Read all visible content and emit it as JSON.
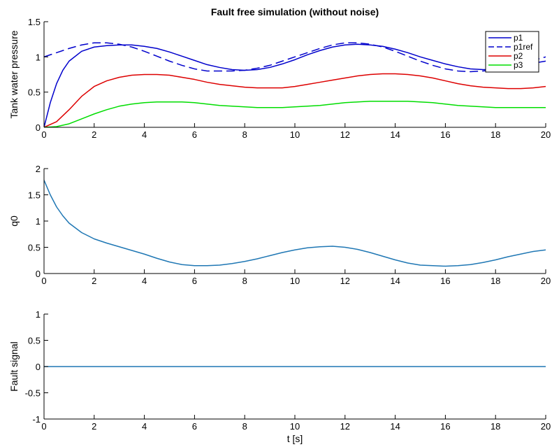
{
  "chart_data": [
    {
      "type": "line",
      "title": "Fault free simulation (without noise)",
      "xlabel": "",
      "ylabel": "Tank water pressure",
      "xlim": [
        0,
        20
      ],
      "ylim": [
        0,
        1.5
      ],
      "xticks": [
        "0",
        "2",
        "4",
        "6",
        "8",
        "10",
        "12",
        "14",
        "16",
        "18",
        "20"
      ],
      "yticks": [
        "0",
        "0.5",
        "1",
        "1.5"
      ],
      "legend_position": "top-right",
      "series": [
        {
          "name": "p1",
          "color": "#0000cc",
          "dash": false,
          "x": [
            0,
            0.25,
            0.5,
            0.75,
            1,
            1.5,
            2,
            2.5,
            3,
            3.5,
            4,
            4.5,
            5,
            5.5,
            6,
            6.5,
            7,
            7.5,
            8,
            8.5,
            9,
            9.5,
            10,
            10.5,
            11,
            11.5,
            12,
            12.5,
            13,
            13.5,
            14,
            14.5,
            15,
            15.5,
            16,
            16.5,
            17,
            17.5,
            18,
            18.5,
            19,
            19.5,
            20
          ],
          "values": [
            0,
            0.35,
            0.62,
            0.81,
            0.94,
            1.08,
            1.14,
            1.16,
            1.17,
            1.17,
            1.15,
            1.12,
            1.07,
            1.01,
            0.95,
            0.89,
            0.85,
            0.82,
            0.81,
            0.82,
            0.85,
            0.9,
            0.96,
            1.03,
            1.09,
            1.14,
            1.17,
            1.18,
            1.17,
            1.15,
            1.11,
            1.06,
            1.0,
            0.95,
            0.9,
            0.86,
            0.83,
            0.82,
            0.82,
            0.84,
            0.87,
            0.91,
            0.94
          ]
        },
        {
          "name": "p1ref",
          "color": "#0000cc",
          "dash": true,
          "x": [
            0,
            0.5,
            1,
            1.5,
            2,
            2.5,
            3,
            3.5,
            4,
            4.5,
            5,
            5.5,
            6,
            6.5,
            7,
            7.5,
            8,
            8.5,
            9,
            9.5,
            10,
            10.5,
            11,
            11.5,
            12,
            12.5,
            13,
            13.5,
            14,
            14.5,
            15,
            15.5,
            16,
            16.5,
            17,
            17.5,
            18,
            18.5,
            19,
            19.5,
            20
          ],
          "values": [
            1.0,
            1.06,
            1.12,
            1.17,
            1.2,
            1.2,
            1.18,
            1.14,
            1.08,
            1.01,
            0.94,
            0.88,
            0.83,
            0.8,
            0.8,
            0.8,
            0.81,
            0.84,
            0.88,
            0.94,
            1.0,
            1.06,
            1.12,
            1.17,
            1.2,
            1.2,
            1.18,
            1.14,
            1.08,
            1.01,
            0.94,
            0.88,
            0.83,
            0.8,
            0.79,
            0.8,
            0.82,
            0.86,
            0.9,
            0.95,
            1.0
          ]
        },
        {
          "name": "p2",
          "color": "#dd0000",
          "dash": false,
          "x": [
            0,
            0.5,
            1,
            1.5,
            2,
            2.5,
            3,
            3.5,
            4,
            4.5,
            5,
            5.5,
            6,
            6.5,
            7,
            7.5,
            8,
            8.5,
            9,
            9.5,
            10,
            10.5,
            11,
            11.5,
            12,
            12.5,
            13,
            13.5,
            14,
            14.5,
            15,
            15.5,
            16,
            16.5,
            17,
            17.5,
            18,
            18.5,
            19,
            19.5,
            20
          ],
          "values": [
            0,
            0.08,
            0.25,
            0.44,
            0.58,
            0.66,
            0.71,
            0.74,
            0.75,
            0.75,
            0.74,
            0.71,
            0.68,
            0.64,
            0.61,
            0.59,
            0.57,
            0.56,
            0.56,
            0.56,
            0.58,
            0.61,
            0.64,
            0.67,
            0.7,
            0.73,
            0.75,
            0.76,
            0.76,
            0.75,
            0.73,
            0.7,
            0.66,
            0.62,
            0.59,
            0.57,
            0.56,
            0.55,
            0.55,
            0.56,
            0.58
          ]
        },
        {
          "name": "p3",
          "color": "#00dd00",
          "dash": false,
          "x": [
            0,
            0.5,
            1,
            1.5,
            2,
            2.5,
            3,
            3.5,
            4,
            4.5,
            5,
            5.5,
            6,
            6.5,
            7,
            7.5,
            8,
            8.5,
            9,
            9.5,
            10,
            10.5,
            11,
            11.5,
            12,
            12.5,
            13,
            13.5,
            14,
            14.5,
            15,
            15.5,
            16,
            16.5,
            17,
            17.5,
            18,
            18.5,
            19,
            19.5,
            20
          ],
          "values": [
            0,
            0.01,
            0.05,
            0.12,
            0.19,
            0.25,
            0.3,
            0.33,
            0.35,
            0.36,
            0.36,
            0.36,
            0.35,
            0.33,
            0.31,
            0.3,
            0.29,
            0.28,
            0.28,
            0.28,
            0.29,
            0.3,
            0.31,
            0.33,
            0.35,
            0.36,
            0.37,
            0.37,
            0.37,
            0.37,
            0.36,
            0.35,
            0.33,
            0.31,
            0.3,
            0.29,
            0.28,
            0.28,
            0.28,
            0.28,
            0.28
          ]
        }
      ]
    },
    {
      "type": "line",
      "title": "",
      "xlabel": "",
      "ylabel": "q0",
      "xlim": [
        0,
        20
      ],
      "ylim": [
        0,
        2
      ],
      "xticks": [
        "0",
        "2",
        "4",
        "6",
        "8",
        "10",
        "12",
        "14",
        "16",
        "18",
        "20"
      ],
      "yticks": [
        "0",
        "0.5",
        "1",
        "1.5",
        "2"
      ],
      "series": [
        {
          "color": "#1f77b4",
          "dash": false,
          "x": [
            0,
            0.25,
            0.5,
            0.75,
            1,
            1.5,
            2,
            2.5,
            3,
            3.5,
            4,
            4.5,
            5,
            5.5,
            6,
            6.5,
            7,
            7.5,
            8,
            8.5,
            9,
            9.5,
            10,
            10.5,
            11,
            11.5,
            12,
            12.5,
            13,
            13.5,
            14,
            14.5,
            15,
            15.5,
            16,
            16.5,
            17,
            17.5,
            18,
            18.5,
            19,
            19.5,
            20
          ],
          "values": [
            1.78,
            1.5,
            1.27,
            1.1,
            0.96,
            0.78,
            0.66,
            0.58,
            0.51,
            0.44,
            0.37,
            0.29,
            0.22,
            0.17,
            0.15,
            0.15,
            0.16,
            0.19,
            0.23,
            0.28,
            0.34,
            0.4,
            0.45,
            0.49,
            0.51,
            0.52,
            0.5,
            0.46,
            0.4,
            0.33,
            0.26,
            0.2,
            0.16,
            0.15,
            0.14,
            0.15,
            0.17,
            0.21,
            0.26,
            0.32,
            0.37,
            0.42,
            0.45
          ]
        }
      ]
    },
    {
      "type": "line",
      "title": "",
      "xlabel": "t [s]",
      "ylabel": "Fault signal",
      "xlim": [
        0,
        20
      ],
      "ylim": [
        -1,
        1
      ],
      "xticks": [
        "0",
        "2",
        "4",
        "6",
        "8",
        "10",
        "12",
        "14",
        "16",
        "18",
        "20"
      ],
      "yticks": [
        "-1",
        "-0.5",
        "0",
        "0.5",
        "1"
      ],
      "series": [
        {
          "color": "#1f77b4",
          "dash": false,
          "x": [
            0,
            20
          ],
          "values": [
            0,
            0
          ]
        }
      ]
    }
  ]
}
